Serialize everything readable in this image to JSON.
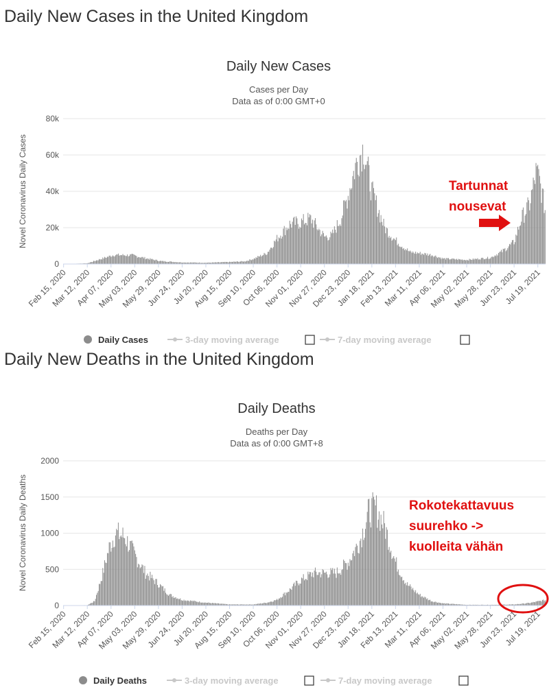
{
  "colors": {
    "bar": "#8c8c8c",
    "grid": "#e6e6e6",
    "axis": "#ccd6eb",
    "annotation": "#e01010",
    "legend_inactive": "#c8c8c8"
  },
  "cases_section": {
    "heading": "Daily New Cases in the United Kingdom"
  },
  "deaths_section": {
    "heading": "Daily New Deaths in the United Kingdom"
  },
  "chart_data": [
    {
      "type": "bar",
      "title": "Daily New Cases",
      "subtitle": [
        "Cases per Day",
        "Data as of 0:00 GMT+0"
      ],
      "xlabel": "",
      "ylabel": "Novel Coronavirus Daily Cases",
      "ylim": [
        0,
        80000
      ],
      "yticks": [
        0,
        20000,
        40000,
        60000,
        80000
      ],
      "ytick_labels": [
        "0",
        "20k",
        "40k",
        "60k",
        "80k"
      ],
      "xtick_labels": [
        "Feb 15, 2020",
        "Mar 12, 2020",
        "Apr 07, 2020",
        "May 03, 2020",
        "May 29, 2020",
        "Jun 24, 2020",
        "Jul 20, 2020",
        "Aug 15, 2020",
        "Sep 10, 2020",
        "Oct 06, 2020",
        "Nov 01, 2020",
        "Nov 27, 2020",
        "Dec 23, 2020",
        "Jan 18, 2021",
        "Feb 13, 2021",
        "Mar 11, 2021",
        "Apr 06, 2021",
        "May 02, 2021",
        "May 28, 2021",
        "Jun 23, 2021",
        "Jul 19, 2021"
      ],
      "grid": true,
      "legend": {
        "placement": "bottom-center",
        "items": [
          {
            "label": "Daily Cases",
            "active": true
          },
          {
            "label": "3-day moving average",
            "active": false
          },
          {
            "label": "7-day moving average",
            "active": false
          }
        ]
      },
      "series": [
        {
          "name": "Daily Cases",
          "x_start": "Feb 15, 2020",
          "x_end": "Jul 27, 2021",
          "anchors": [
            [
              "Feb 15, 2020",
              0
            ],
            [
              "Mar 12, 2020",
              400
            ],
            [
              "Mar 25, 2020",
              2500
            ],
            [
              "Apr 10, 2020",
              5000
            ],
            [
              "May 01, 2020",
              4800
            ],
            [
              "May 15, 2020",
              3200
            ],
            [
              "Jun 01, 2020",
              1600
            ],
            [
              "Jun 24, 2020",
              900
            ],
            [
              "Jul 20, 2020",
              700
            ],
            [
              "Aug 15, 2020",
              1100
            ],
            [
              "Sep 01, 2020",
              1500
            ],
            [
              "Sep 10, 2020",
              2800
            ],
            [
              "Sep 25, 2020",
              6000
            ],
            [
              "Oct 06, 2020",
              14000
            ],
            [
              "Oct 20, 2020",
              22000
            ],
            [
              "Nov 01, 2020",
              23000
            ],
            [
              "Nov 12, 2020",
              25000
            ],
            [
              "Nov 27, 2020",
              15000
            ],
            [
              "Dec 05, 2020",
              15500
            ],
            [
              "Dec 15, 2020",
              25000
            ],
            [
              "Dec 23, 2020",
              38000
            ],
            [
              "Dec 31, 2020",
              54000
            ],
            [
              "Jan 05, 2021",
              60000
            ],
            [
              "Jan 09, 2021",
              64000
            ],
            [
              "Jan 18, 2021",
              40000
            ],
            [
              "Feb 01, 2021",
              20000
            ],
            [
              "Feb 13, 2021",
              13000
            ],
            [
              "Mar 01, 2021",
              6500
            ],
            [
              "Mar 11, 2021",
              6000
            ],
            [
              "Mar 25, 2021",
              5000
            ],
            [
              "Apr 06, 2021",
              3000
            ],
            [
              "May 02, 2021",
              2300
            ],
            [
              "May 28, 2021",
              3500
            ],
            [
              "Jun 10, 2021",
              7000
            ],
            [
              "Jun 23, 2021",
              12000
            ],
            [
              "Jul 01, 2021",
              25000
            ],
            [
              "Jul 10, 2021",
              33000
            ],
            [
              "Jul 17, 2021",
              50000
            ],
            [
              "Jul 20, 2021",
              48000
            ],
            [
              "Jul 27, 2021",
              30000
            ]
          ]
        }
      ],
      "annotation": {
        "text": [
          "Tartunnat",
          "nousevat"
        ]
      }
    },
    {
      "type": "bar",
      "title": "Daily Deaths",
      "subtitle": [
        "Deaths per Day",
        "Data as of 0:00 GMT+8"
      ],
      "xlabel": "",
      "ylabel": "Novel Coronavirus Daily Deaths",
      "ylim": [
        0,
        2000
      ],
      "yticks": [
        0,
        500,
        1000,
        1500,
        2000
      ],
      "ytick_labels": [
        "0",
        "500",
        "1000",
        "1500",
        "2000"
      ],
      "xtick_labels": [
        "Feb 15, 2020",
        "Mar 12, 2020",
        "Apr 07, 2020",
        "May 03, 2020",
        "May 29, 2020",
        "Jun 24, 2020",
        "Jul 20, 2020",
        "Aug 15, 2020",
        "Sep 10, 2020",
        "Oct 06, 2020",
        "Nov 01, 2020",
        "Nov 27, 2020",
        "Dec 23, 2020",
        "Jan 18, 2021",
        "Feb 13, 2021",
        "Mar 11, 2021",
        "Apr 06, 2021",
        "May 02, 2021",
        "May 28, 2021",
        "Jun 23, 2021",
        "Jul 19, 2021"
      ],
      "grid": true,
      "legend": {
        "placement": "bottom-center",
        "items": [
          {
            "label": "Daily Deaths",
            "active": true
          },
          {
            "label": "3-day moving average",
            "active": false
          },
          {
            "label": "7-day moving average",
            "active": false
          }
        ]
      },
      "series": [
        {
          "name": "Daily Deaths",
          "x_start": "Feb 15, 2020",
          "x_end": "Jul 27, 2021",
          "anchors": [
            [
              "Feb 15, 2020",
              0
            ],
            [
              "Mar 12, 2020",
              5
            ],
            [
              "Mar 20, 2020",
              60
            ],
            [
              "Mar 28, 2020",
              400
            ],
            [
              "Apr 05, 2020",
              800
            ],
            [
              "Apr 12, 2020",
              1000
            ],
            [
              "Apr 22, 2020",
              950
            ],
            [
              "May 03, 2020",
              700
            ],
            [
              "May 15, 2020",
              450
            ],
            [
              "May 29, 2020",
              300
            ],
            [
              "Jun 10, 2020",
              150
            ],
            [
              "Jun 24, 2020",
              80
            ],
            [
              "Jul 20, 2020",
              40
            ],
            [
              "Aug 15, 2020",
              15
            ],
            [
              "Sep 10, 2020",
              15
            ],
            [
              "Sep 25, 2020",
              40
            ],
            [
              "Oct 06, 2020",
              80
            ],
            [
              "Oct 20, 2020",
              220
            ],
            [
              "Nov 01, 2020",
              350
            ],
            [
              "Nov 15, 2020",
              450
            ],
            [
              "Nov 27, 2020",
              450
            ],
            [
              "Dec 10, 2020",
              450
            ],
            [
              "Dec 23, 2020",
              600
            ],
            [
              "Jan 05, 2021",
              900
            ],
            [
              "Jan 15, 2021",
              1300
            ],
            [
              "Jan 22, 2021",
              1350
            ],
            [
              "Feb 01, 2021",
              1100
            ],
            [
              "Feb 13, 2021",
              600
            ],
            [
              "Feb 25, 2021",
              300
            ],
            [
              "Mar 11, 2021",
              150
            ],
            [
              "Mar 25, 2021",
              60
            ],
            [
              "Apr 06, 2021",
              30
            ],
            [
              "May 02, 2021",
              10
            ],
            [
              "May 28, 2021",
              10
            ],
            [
              "Jun 23, 2021",
              15
            ],
            [
              "Jul 10, 2021",
              35
            ],
            [
              "Jul 27, 2021",
              75
            ]
          ]
        }
      ],
      "annotation": {
        "text": [
          "Rokotekattavuus",
          "suurehko ->",
          "kuolleita vähän"
        ]
      }
    }
  ]
}
